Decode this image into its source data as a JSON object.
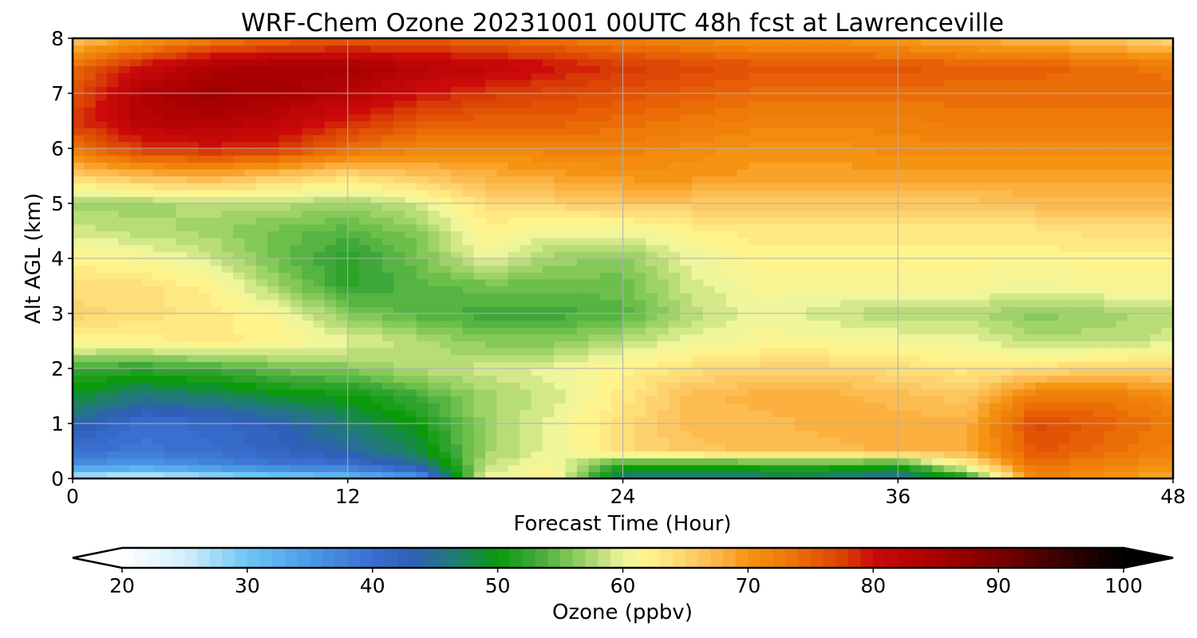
{
  "chart_data": {
    "type": "heatmap",
    "title": "WRF-Chem Ozone  20231001 00UTC 48h fcst at Lawrenceville",
    "xlabel": "Forecast Time (Hour)",
    "ylabel": "Alt AGL (km)",
    "xlim": [
      0,
      48
    ],
    "ylim": [
      0,
      8
    ],
    "x_ticks": [
      "0",
      "12",
      "24",
      "36",
      "48"
    ],
    "y_ticks": [
      "0",
      "1",
      "2",
      "3",
      "4",
      "5",
      "6",
      "7",
      "8"
    ],
    "grid": true,
    "colorbar": {
      "label": "Ozone  (ppbv)",
      "range": [
        20,
        100
      ],
      "ticks": [
        "20",
        "30",
        "40",
        "50",
        "60",
        "70",
        "80",
        "90",
        "100"
      ],
      "extend": "both",
      "orientation": "horizontal",
      "stops": [
        {
          "v": 20,
          "c": "#ffffff"
        },
        {
          "v": 25,
          "c": "#d4eefb"
        },
        {
          "v": 30,
          "c": "#6ec6f5"
        },
        {
          "v": 35,
          "c": "#4a9be6"
        },
        {
          "v": 40,
          "c": "#3a6fd0"
        },
        {
          "v": 43,
          "c": "#2f5fb8"
        },
        {
          "v": 47,
          "c": "#1f7f6e"
        },
        {
          "v": 50,
          "c": "#0a9a0a"
        },
        {
          "v": 53,
          "c": "#3ea83a"
        },
        {
          "v": 55,
          "c": "#6cbf4a"
        },
        {
          "v": 58,
          "c": "#b8dd78"
        },
        {
          "v": 60,
          "c": "#eef59a"
        },
        {
          "v": 62,
          "c": "#fff48c"
        },
        {
          "v": 65,
          "c": "#fdd370"
        },
        {
          "v": 68,
          "c": "#fbb040"
        },
        {
          "v": 70,
          "c": "#f59312"
        },
        {
          "v": 73,
          "c": "#ee7a08"
        },
        {
          "v": 75,
          "c": "#e86006"
        },
        {
          "v": 78,
          "c": "#d83a06"
        },
        {
          "v": 80,
          "c": "#cc0a0a"
        },
        {
          "v": 85,
          "c": "#a80000"
        },
        {
          "v": 90,
          "c": "#7a0000"
        },
        {
          "v": 95,
          "c": "#3a0000"
        },
        {
          "v": 100,
          "c": "#000000"
        }
      ]
    },
    "x": [
      0,
      3,
      6,
      9,
      12,
      15,
      18,
      21,
      24,
      27,
      30,
      33,
      36,
      39,
      42,
      45,
      48
    ],
    "y": [
      0,
      0.25,
      0.5,
      1,
      1.5,
      2,
      2.5,
      3,
      3.5,
      4,
      4.5,
      5,
      5.5,
      6,
      6.5,
      7,
      7.5,
      8
    ],
    "z": [
      [
        26,
        24,
        26,
        28,
        30,
        34,
        60,
        62,
        45,
        45,
        46,
        46,
        44,
        50,
        72,
        70,
        68
      ],
      [
        36,
        35,
        37,
        39,
        40,
        44,
        58,
        61,
        52,
        51,
        52,
        52,
        51,
        62,
        74,
        72,
        70
      ],
      [
        40,
        39,
        40,
        42,
        44,
        48,
        57,
        60,
        64,
        66,
        67,
        67,
        68,
        68,
        76,
        74,
        72
      ],
      [
        44,
        40,
        41,
        43,
        47,
        50,
        57,
        60,
        64,
        67,
        67,
        68,
        68,
        68,
        77,
        75,
        73
      ],
      [
        49,
        46,
        47,
        49,
        50,
        53,
        57,
        59,
        63,
        67,
        68,
        68,
        67,
        66,
        73,
        73,
        71
      ],
      [
        53,
        52,
        53,
        55,
        56,
        58,
        59,
        60,
        62,
        64,
        65,
        65,
        64,
        63,
        64,
        65,
        65
      ],
      [
        62,
        62,
        63,
        62,
        60,
        58,
        56,
        56,
        58,
        60,
        61,
        61,
        61,
        60,
        58,
        58,
        59
      ],
      [
        65,
        64,
        63,
        61,
        56,
        54,
        53,
        53,
        54,
        58,
        60,
        59,
        57,
        58,
        56,
        57,
        58
      ],
      [
        64,
        64,
        62,
        57,
        52,
        54,
        55,
        55,
        55,
        59,
        61,
        61,
        61,
        61,
        60,
        61,
        61
      ],
      [
        62,
        61,
        59,
        55,
        52,
        55,
        60,
        57,
        56,
        60,
        62,
        62,
        62,
        62,
        62,
        62,
        62
      ],
      [
        59,
        58,
        57,
        55,
        54,
        56,
        62,
        60,
        60,
        62,
        63,
        63,
        63,
        63,
        63,
        64,
        64
      ],
      [
        57,
        57,
        58,
        58,
        57,
        59,
        64,
        65,
        66,
        66,
        66,
        66,
        66,
        66,
        67,
        67,
        67
      ],
      [
        65,
        67,
        68,
        66,
        64,
        66,
        68,
        69,
        70,
        70,
        69,
        69,
        69,
        69,
        69,
        69,
        69
      ],
      [
        73,
        78,
        79,
        78,
        74,
        72,
        71,
        72,
        72,
        71,
        70,
        70,
        71,
        71,
        71,
        71,
        71
      ],
      [
        78,
        83,
        84,
        82,
        79,
        76,
        75,
        75,
        74,
        73,
        72,
        72,
        72,
        73,
        73,
        73,
        73
      ],
      [
        76,
        84,
        86,
        85,
        83,
        80,
        78,
        77,
        76,
        75,
        74,
        74,
        74,
        74,
        74,
        74,
        74
      ],
      [
        74,
        80,
        84,
        85,
        85,
        83,
        82,
        80,
        78,
        77,
        76,
        76,
        76,
        75,
        75,
        74,
        73
      ],
      [
        66,
        69,
        72,
        74,
        75,
        75,
        74,
        73,
        72,
        71,
        70,
        70,
        69,
        68,
        67,
        66,
        64
      ]
    ]
  }
}
